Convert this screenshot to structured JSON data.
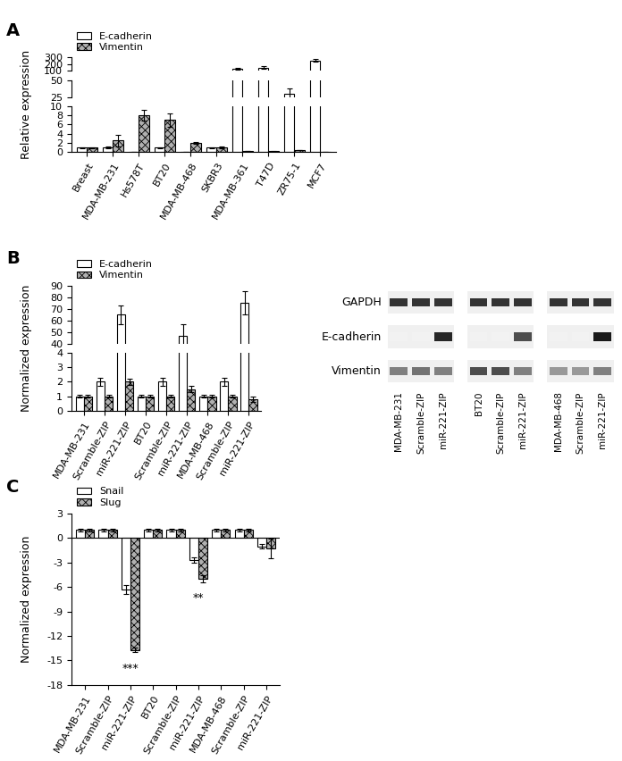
{
  "chart_data": [
    {
      "type": "bar",
      "title": "A",
      "y_label": "Relative expression",
      "legend": "upper left",
      "categories": [
        "Breast",
        "MDA-MB-231",
        "Hs578T",
        "BT20",
        "MDA-MB-468",
        "SKBR3",
        "MDA-MB-361",
        "T47D",
        "ZR75-1",
        "MCF7"
      ],
      "series": [
        {
          "name": "E-cadherin",
          "color": "#ffffff",
          "values": [
            1,
            1,
            0.1,
            1,
            0.1,
            1,
            130,
            150,
            30,
            250
          ],
          "error": [
            0.1,
            0.2,
            0.05,
            0.1,
            0.05,
            0.1,
            10,
            15,
            8,
            20
          ]
        },
        {
          "name": "Vimentin",
          "color": "#b0b0b0",
          "values": [
            1,
            2.5,
            8,
            7,
            2,
            1,
            0.3,
            0.2,
            0.5,
            0.1
          ],
          "error": [
            0.1,
            1.2,
            1.2,
            1.5,
            0.2,
            0.2,
            0.05,
            0.05,
            0.05,
            0.05
          ]
        }
      ],
      "ylim": [
        [
          0,
          10
        ],
        [
          25,
          50
        ],
        [
          100,
          300
        ]
      ],
      "yticks": [
        [
          0,
          2,
          4,
          6,
          8,
          10
        ],
        [
          25,
          50
        ],
        [
          100,
          200,
          300
        ]
      ]
    },
    {
      "type": "bar",
      "title": "B",
      "y_label": "Normalized expression",
      "legend": "upper left",
      "categories": [
        "MDA-MB-231",
        "Scramble-ZIP",
        "miR-221-ZIP",
        "BT20",
        "Scramble-ZIP",
        "miR-221-ZIP",
        "MDA-MB-468",
        "Scramble-ZIP",
        "miR-221-ZIP"
      ],
      "series": [
        {
          "name": "E-cadherin",
          "color": "#ffffff",
          "values": [
            1,
            2,
            65,
            1,
            2,
            47,
            1,
            2,
            75
          ],
          "error": [
            0.1,
            0.3,
            8,
            0.1,
            0.3,
            10,
            0.1,
            0.3,
            10
          ]
        },
        {
          "name": "Vimentin",
          "color": "#b0b0b0",
          "values": [
            1,
            1,
            2,
            1,
            1,
            1.5,
            1,
            1,
            0.8
          ],
          "error": [
            0.1,
            0.1,
            0.2,
            0.1,
            0.1,
            0.2,
            0.1,
            0.1,
            0.2
          ]
        }
      ],
      "ylim": [
        [
          0,
          4
        ],
        [
          40,
          90
        ]
      ],
      "yticks": [
        [
          0,
          1,
          2,
          3,
          4
        ],
        [
          40,
          50,
          60,
          70,
          80,
          90
        ]
      ]
    },
    {
      "type": "blot",
      "rows": [
        "GAPDH",
        "E-cadherin",
        "Vimentin"
      ],
      "lanes": [
        [
          "MDA-MB-231",
          "Scramble-ZIP",
          "miR-221-ZIP"
        ],
        [
          "BT20",
          "Scramble-ZIP",
          "miR-221-ZIP"
        ],
        [
          "MDA-MB-468",
          "Scramble-ZIP",
          "miR-221-ZIP"
        ]
      ],
      "intensity": [
        [
          0.8,
          0.8,
          0.8,
          0.8,
          0.8,
          0.8,
          0.8,
          0.8,
          0.8
        ],
        [
          0.05,
          0.05,
          0.85,
          0.05,
          0.05,
          0.7,
          0.05,
          0.05,
          0.9
        ],
        [
          0.5,
          0.55,
          0.5,
          0.7,
          0.7,
          0.5,
          0.4,
          0.4,
          0.5
        ]
      ]
    },
    {
      "type": "bar",
      "title": "C",
      "y_label": "Normalized expression",
      "legend": "upper left",
      "categories": [
        "MDA-MB-231",
        "Scramble-ZIP",
        "miR-221-ZIP",
        "BT20",
        "Scramble-ZIP",
        "miR-221-ZIP",
        "MDA-MB-468",
        "Scramble-ZIP",
        "miR-221-ZIP"
      ],
      "series": [
        {
          "name": "Snail",
          "color": "#ffffff",
          "values": [
            1,
            1,
            -6.3,
            1,
            1,
            -2.7,
            1,
            1,
            -1
          ],
          "error": [
            0.2,
            0.2,
            0.5,
            0.2,
            0.2,
            0.3,
            0.2,
            0.2,
            0.3
          ]
        },
        {
          "name": "Slug",
          "color": "#b0b0b0",
          "values": [
            1,
            1,
            -13.7,
            1,
            1,
            -5,
            1,
            1,
            -1.3
          ],
          "error": [
            0.2,
            0.2,
            0.3,
            0.2,
            0.2,
            0.4,
            0.2,
            0.2,
            1.2
          ]
        }
      ],
      "annotations": [
        {
          "text": "***",
          "index": 2,
          "y": -15.3
        },
        {
          "text": "**",
          "index": 5,
          "y": -6.6
        }
      ],
      "ylim": [
        -18,
        3
      ],
      "yticks": [
        -18,
        -15,
        -12,
        -9,
        -6,
        -3,
        0,
        3
      ]
    }
  ]
}
